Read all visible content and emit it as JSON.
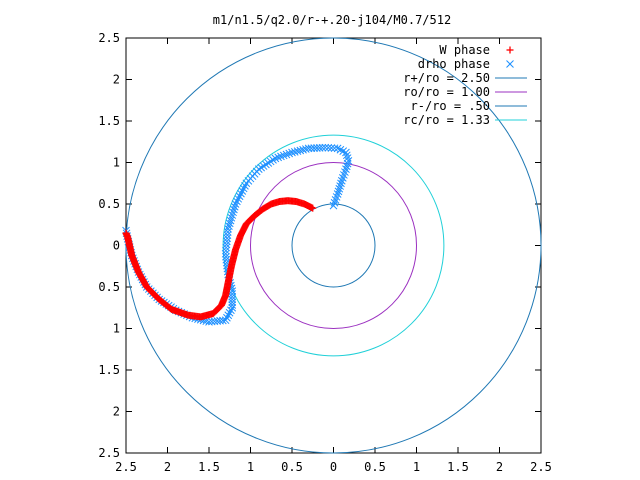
{
  "chart_data": {
    "type": "scatter",
    "title": "m1/n1.5/q2.0/r-+.20-j104/M0.7/512",
    "xlabel": "",
    "ylabel": "",
    "xlim": [
      -2.5,
      2.5
    ],
    "ylim": [
      -2.5,
      2.5
    ],
    "x_ticks": [
      -2.5,
      -2,
      -1.5,
      -1,
      -0.5,
      0,
      0.5,
      1,
      1.5,
      2,
      2.5
    ],
    "y_ticks": [
      -2.5,
      -2,
      -1.5,
      -1,
      -0.5,
      0,
      0.5,
      1,
      1.5,
      2,
      2.5
    ],
    "x_tick_labels": [
      "2.5",
      "2",
      "1.5",
      "1",
      "0.5",
      "0",
      "0.5",
      "1",
      "1.5",
      "2",
      "2.5"
    ],
    "y_tick_labels": [
      "2.5",
      "2",
      "1.5",
      "1",
      "0.5",
      "0",
      "0.5",
      "1",
      "1.5",
      "2",
      "2.5"
    ],
    "grid": false,
    "legend_position": "top-right",
    "series": [
      {
        "name": "W phase",
        "marker": "+",
        "color": "#ff0000",
        "points": [
          [
            -0.25,
            0.45
          ],
          [
            -0.35,
            0.5
          ],
          [
            -0.45,
            0.53
          ],
          [
            -0.55,
            0.54
          ],
          [
            -0.65,
            0.53
          ],
          [
            -0.75,
            0.5
          ],
          [
            -0.85,
            0.44
          ],
          [
            -0.95,
            0.36
          ],
          [
            -1.05,
            0.26
          ],
          [
            -1.12,
            0.12
          ],
          [
            -1.18,
            -0.05
          ],
          [
            -1.23,
            -0.25
          ],
          [
            -1.27,
            -0.45
          ],
          [
            -1.3,
            -0.6
          ],
          [
            -1.35,
            -0.72
          ],
          [
            -1.45,
            -0.82
          ],
          [
            -1.6,
            -0.86
          ],
          [
            -1.75,
            -0.84
          ],
          [
            -1.95,
            -0.77
          ],
          [
            -2.1,
            -0.65
          ],
          [
            -2.25,
            -0.5
          ],
          [
            -2.35,
            -0.32
          ],
          [
            -2.43,
            -0.12
          ],
          [
            -2.48,
            0.1
          ],
          [
            -2.5,
            0.15
          ]
        ]
      },
      {
        "name": "drho phase",
        "marker": "x",
        "color": "#1e90ff",
        "points": [
          [
            0.0,
            0.48
          ],
          [
            0.05,
            0.62
          ],
          [
            0.1,
            0.78
          ],
          [
            0.15,
            0.92
          ],
          [
            0.18,
            1.02
          ],
          [
            0.15,
            1.12
          ],
          [
            0.05,
            1.17
          ],
          [
            -0.1,
            1.18
          ],
          [
            -0.3,
            1.17
          ],
          [
            -0.5,
            1.12
          ],
          [
            -0.7,
            1.05
          ],
          [
            -0.9,
            0.92
          ],
          [
            -1.05,
            0.75
          ],
          [
            -1.18,
            0.5
          ],
          [
            -1.27,
            0.2
          ],
          [
            -1.3,
            -0.1
          ],
          [
            -1.27,
            -0.35
          ],
          [
            -1.22,
            -0.55
          ],
          [
            -1.22,
            -0.75
          ],
          [
            -1.3,
            -0.9
          ],
          [
            -1.5,
            -0.92
          ],
          [
            -1.7,
            -0.87
          ],
          [
            -1.9,
            -0.78
          ],
          [
            -2.1,
            -0.65
          ],
          [
            -2.25,
            -0.5
          ],
          [
            -2.35,
            -0.32
          ],
          [
            -2.43,
            -0.12
          ],
          [
            -2.48,
            0.08
          ],
          [
            -2.5,
            0.18
          ]
        ]
      },
      {
        "name": "r+/ro = 2.50",
        "type": "circle",
        "radius": 2.5,
        "color": "#1f78b4"
      },
      {
        "name": "ro/ro = 1.00",
        "type": "circle",
        "radius": 1.0,
        "color": "#9b30c0"
      },
      {
        "name": "r-/ro = .50",
        "type": "circle",
        "radius": 0.5,
        "color": "#1f78b4"
      },
      {
        "name": "rc/ro = 1.33",
        "type": "circle",
        "radius": 1.33,
        "color": "#20d0d8"
      }
    ]
  }
}
